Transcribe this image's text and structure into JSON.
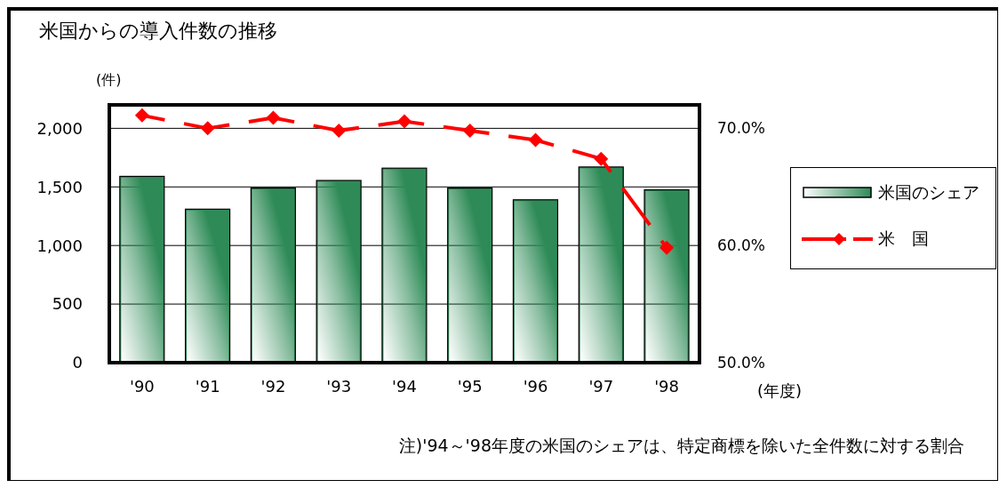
{
  "chart_data": {
    "type": "bar",
    "title": "米国からの導入件数の推移",
    "ylabel": "(件)",
    "xlabel": "(年度)",
    "categories": [
      "'90",
      "'91",
      "'92",
      "'93",
      "'94",
      "'95",
      "'96",
      "'97",
      "'98"
    ],
    "series": [
      {
        "name": "米国のシェア",
        "color": "#2e8b57",
        "values": [
          1590,
          1310,
          1490,
          1555,
          1660,
          1490,
          1390,
          1670,
          1475
        ]
      },
      {
        "name": "米　国",
        "type": "line",
        "axis": "y2",
        "color": "#ff0000",
        "values": [
          71.1,
          70.0,
          70.9,
          69.8,
          70.6,
          69.8,
          69.0,
          67.4,
          59.8
        ]
      }
    ],
    "ylim": [
      0,
      2200
    ],
    "yticks": [
      0,
      500,
      {
        "value": 1000,
        "label": "1,000"
      },
      {
        "value": 1500,
        "label": "1,500"
      },
      {
        "value": 2000,
        "label": "2,000"
      }
    ],
    "y2lim": [
      50,
      72
    ],
    "y2ticks": [
      {
        "value": 50,
        "label": "50.0%"
      },
      {
        "value": 60,
        "label": "60.0%"
      },
      {
        "value": 70,
        "label": "70.0%"
      }
    ],
    "grid": "y",
    "legend": "right",
    "marker": "diamond",
    "line_style": "dashed",
    "annotations": [
      "注)'94～'98年度の米国のシェアは、特定商標を除いた全件数に対する割合"
    ]
  }
}
